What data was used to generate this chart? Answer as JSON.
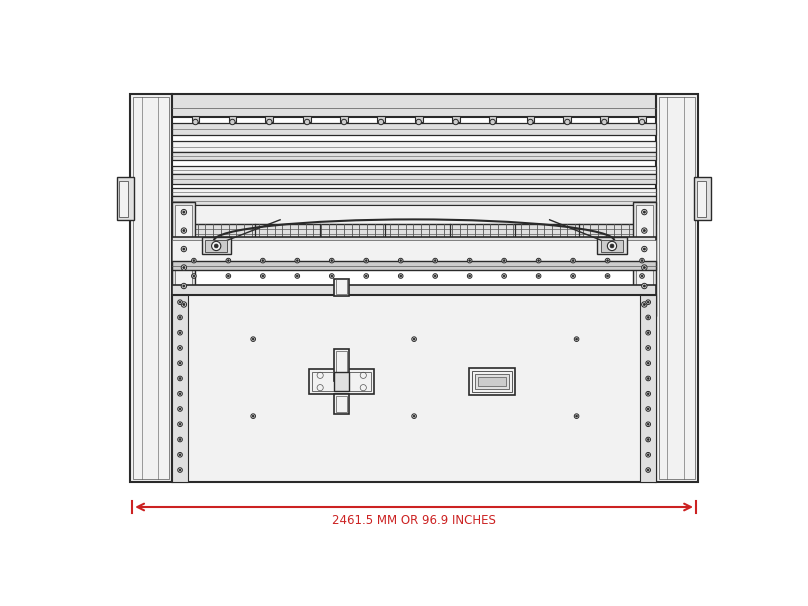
{
  "bg_color": "#ffffff",
  "lc_dark": "#2a2a2a",
  "lc_mid": "#555555",
  "lc_light": "#888888",
  "lc_vlight": "#bbbbbb",
  "fc_light": "#f2f2f2",
  "fc_mid": "#e0e0e0",
  "fc_dark": "#cccccc",
  "red_color": "#cc2222",
  "dim_label": "2461.5 MM OR 96.9 INCHES",
  "fig_width": 8.08,
  "fig_height": 6.06,
  "dpi": 100
}
